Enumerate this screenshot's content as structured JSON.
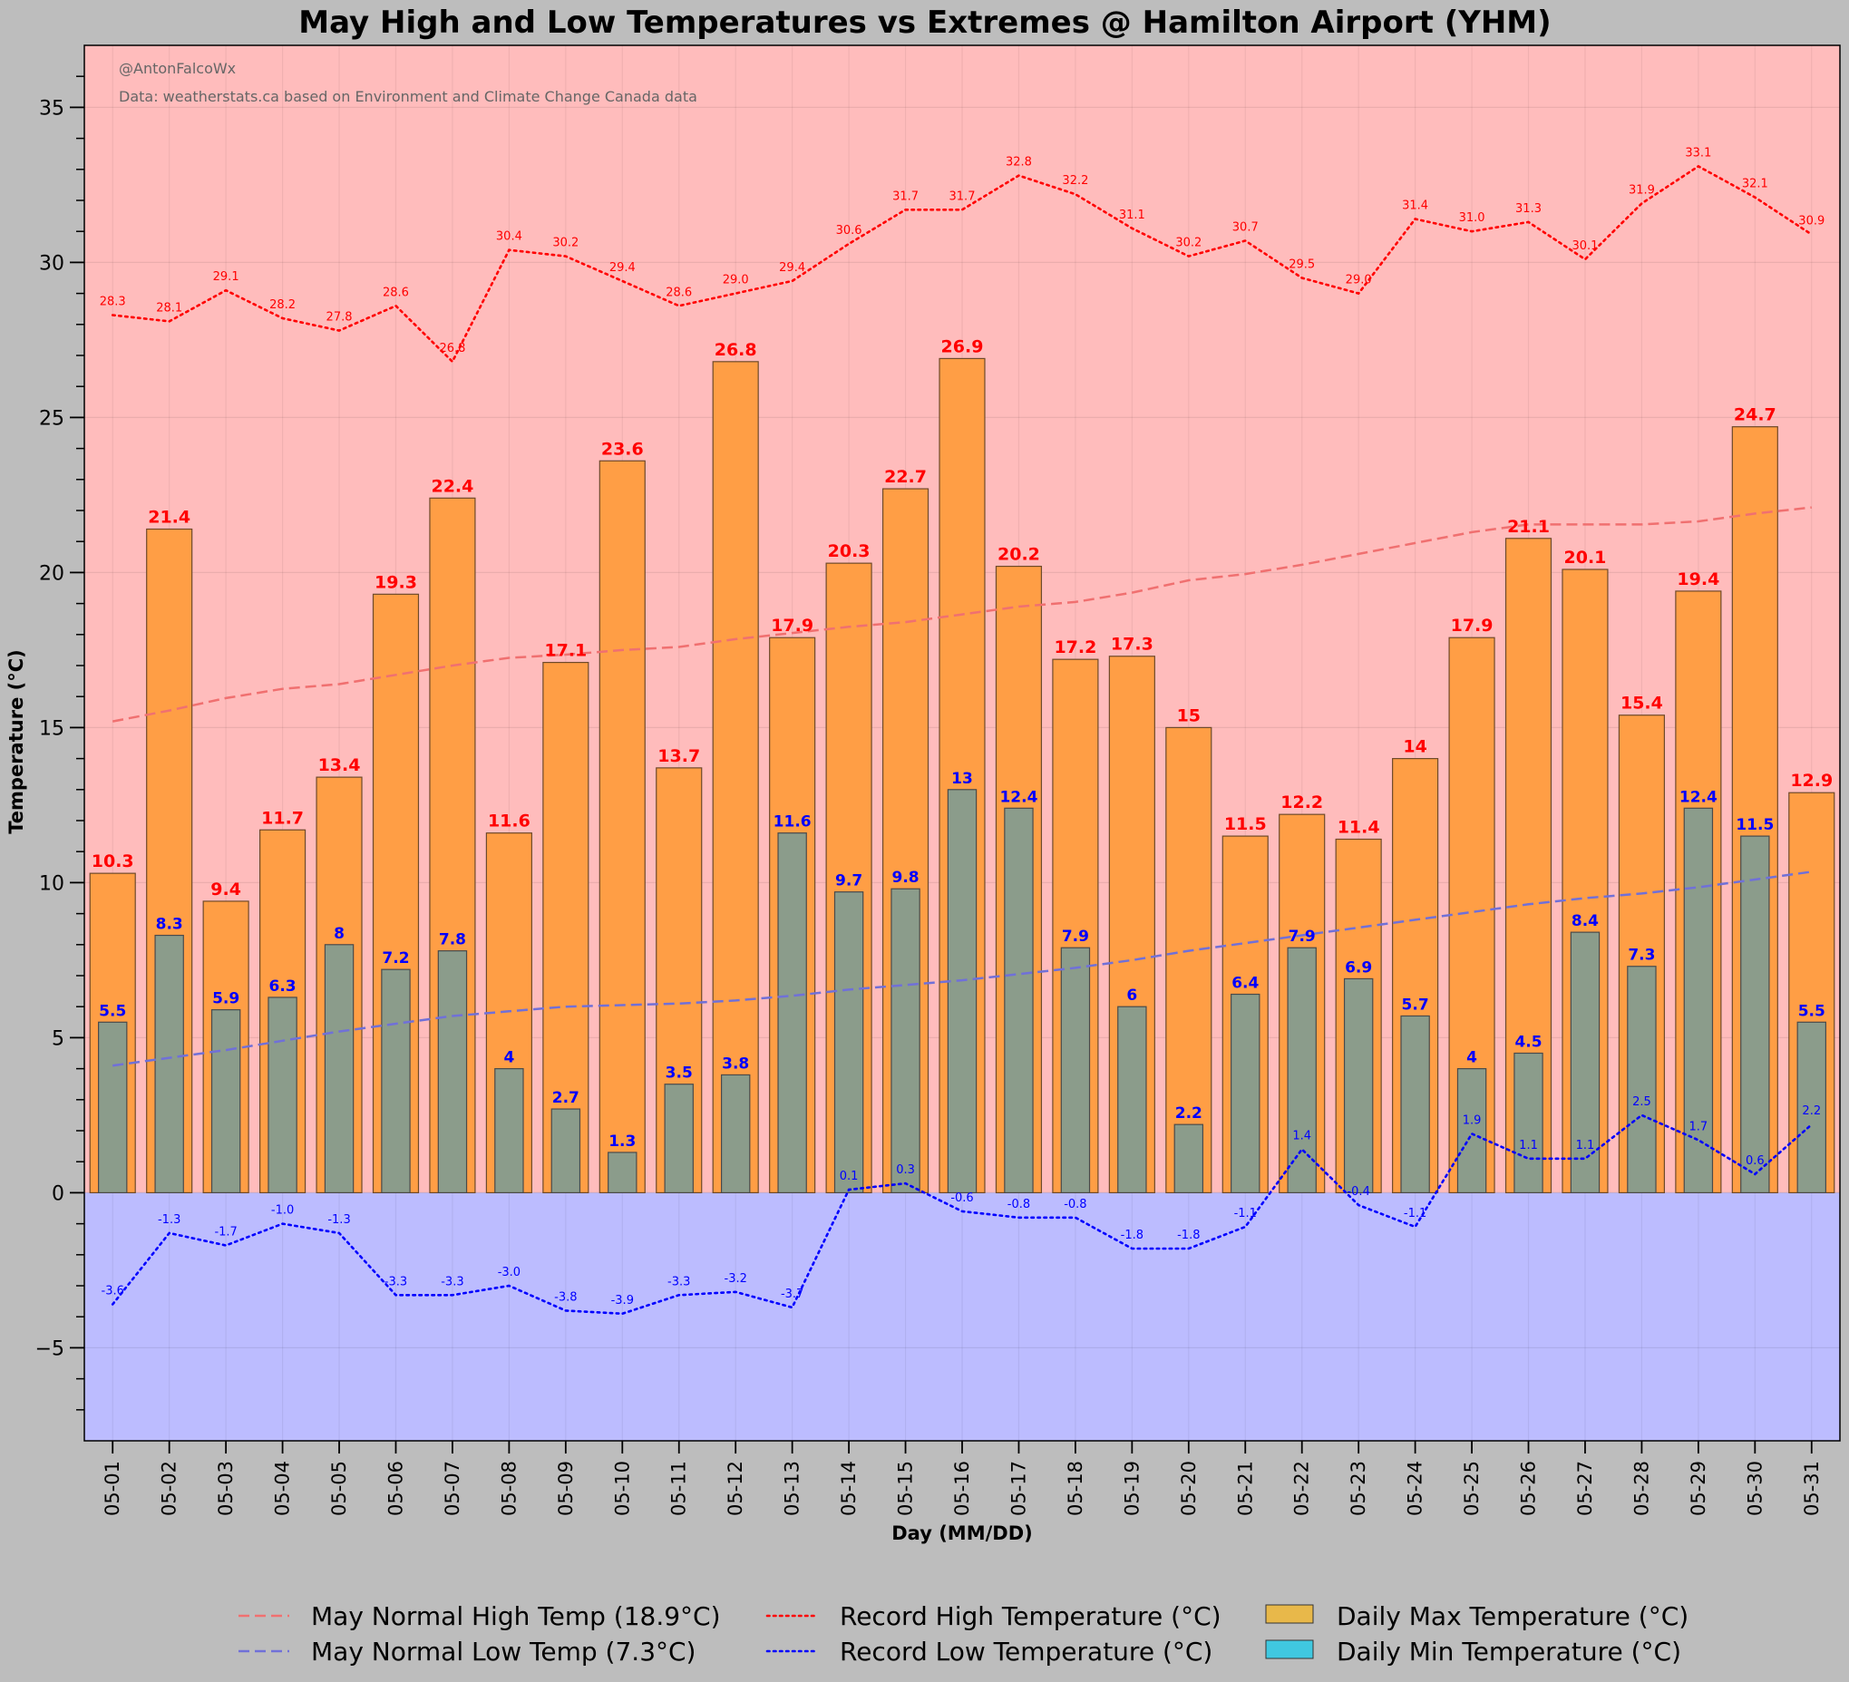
{
  "chart_data": {
    "type": "bar",
    "title": "May High and Low Temperatures vs Extremes @ Hamilton Airport (YHM)",
    "credit": "@AntonFalcoWx",
    "source": "Data: weatherstats.ca based on Environment and Climate Change Canada data",
    "xlabel": "Day (MM/DD)",
    "ylabel": "Temperature (°C)",
    "ylim": [
      -8,
      37
    ],
    "yticks": [
      -5,
      0,
      5,
      10,
      15,
      20,
      25,
      30,
      35
    ],
    "categories": [
      "05-01",
      "05-02",
      "05-03",
      "05-04",
      "05-05",
      "05-06",
      "05-07",
      "05-08",
      "05-09",
      "05-10",
      "05-11",
      "05-12",
      "05-13",
      "05-14",
      "05-15",
      "05-16",
      "05-17",
      "05-18",
      "05-19",
      "05-20",
      "05-21",
      "05-22",
      "05-23",
      "05-24",
      "05-25",
      "05-26",
      "05-27",
      "05-28",
      "05-29",
      "05-30",
      "05-31"
    ],
    "daily_max": [
      10.3,
      21.4,
      9.4,
      11.7,
      13.4,
      19.3,
      22.4,
      11.6,
      17.1,
      23.6,
      13.7,
      26.8,
      17.9,
      20.3,
      22.7,
      26.9,
      20.2,
      17.2,
      17.3,
      15,
      11.5,
      12.2,
      11.4,
      14,
      17.9,
      21.1,
      20.1,
      15.4,
      19.4,
      24.7,
      12.9
    ],
    "daily_min": [
      5.5,
      8.3,
      5.9,
      6.3,
      8,
      7.2,
      7.8,
      4,
      2.7,
      1.3,
      3.5,
      3.8,
      11.6,
      9.7,
      9.8,
      13,
      12.4,
      7.9,
      6,
      2.2,
      6.4,
      7.9,
      6.9,
      5.7,
      4,
      4.5,
      8.4,
      7.3,
      12.4,
      11.5,
      5.5
    ],
    "record_high": [
      28.3,
      28.1,
      29.1,
      28.2,
      27.8,
      28.6,
      26.8,
      30.4,
      30.2,
      29.4,
      28.6,
      29.0,
      29.4,
      30.6,
      31.7,
      31.7,
      32.8,
      32.2,
      31.1,
      30.2,
      30.7,
      29.5,
      29.0,
      31.4,
      31.0,
      31.3,
      30.1,
      31.9,
      33.1,
      32.1,
      30.9
    ],
    "record_low": [
      -3.6,
      -1.3,
      -1.7,
      -1.0,
      -1.3,
      -3.3,
      -3.3,
      -3.0,
      -3.8,
      -3.9,
      -3.3,
      -3.2,
      -3.7,
      0.1,
      0.3,
      -0.6,
      -0.8,
      -0.8,
      -1.8,
      -1.8,
      -1.1,
      1.4,
      -0.4,
      -1.1,
      1.9,
      1.1,
      1.1,
      2.5,
      1.7,
      0.6,
      2.2
    ],
    "normal_high": [
      15.2,
      15.55,
      15.95,
      16.25,
      16.4,
      16.7,
      17.0,
      17.25,
      17.35,
      17.5,
      17.6,
      17.85,
      18.05,
      18.25,
      18.4,
      18.65,
      18.9,
      19.05,
      19.35,
      19.75,
      19.95,
      20.25,
      20.6,
      20.95,
      21.3,
      21.55,
      21.55,
      21.55,
      21.65,
      21.9,
      22.1
    ],
    "normal_low": [
      4.1,
      4.35,
      4.6,
      4.9,
      5.2,
      5.45,
      5.7,
      5.85,
      6.0,
      6.05,
      6.1,
      6.2,
      6.35,
      6.55,
      6.7,
      6.85,
      7.05,
      7.25,
      7.5,
      7.8,
      8.05,
      8.3,
      8.55,
      8.8,
      9.05,
      9.3,
      9.5,
      9.65,
      9.85,
      10.1,
      10.35
    ],
    "legend": {
      "placement": "bottom-center",
      "entries": [
        {
          "label": "May Normal High Temp (18.9°C)",
          "style": "dashed",
          "color": "#f07070"
        },
        {
          "label": "May Normal Low Temp (7.3°C)",
          "style": "dashed",
          "color": "#7070d8"
        },
        {
          "label": "Record High Temperature (°C)",
          "style": "dotted",
          "color": "#ff0000"
        },
        {
          "label": "Record Low Temperature (°C)",
          "style": "dotted",
          "color": "#0000ff"
        },
        {
          "label": "Daily Max Temperature (°C)",
          "style": "patch",
          "color": "#e8b84a"
        },
        {
          "label": "Daily Min Temperature (°C)",
          "style": "patch",
          "color": "#40c8e0"
        }
      ]
    },
    "colors": {
      "background": "#bdbdbd",
      "above_zero": "#ffbcbc",
      "below_zero": "#bcbcff",
      "max_bar": "#ff9e45",
      "min_bar": "#8b9c8b",
      "max_label": "#ff0000",
      "min_label": "#0000ff"
    }
  }
}
